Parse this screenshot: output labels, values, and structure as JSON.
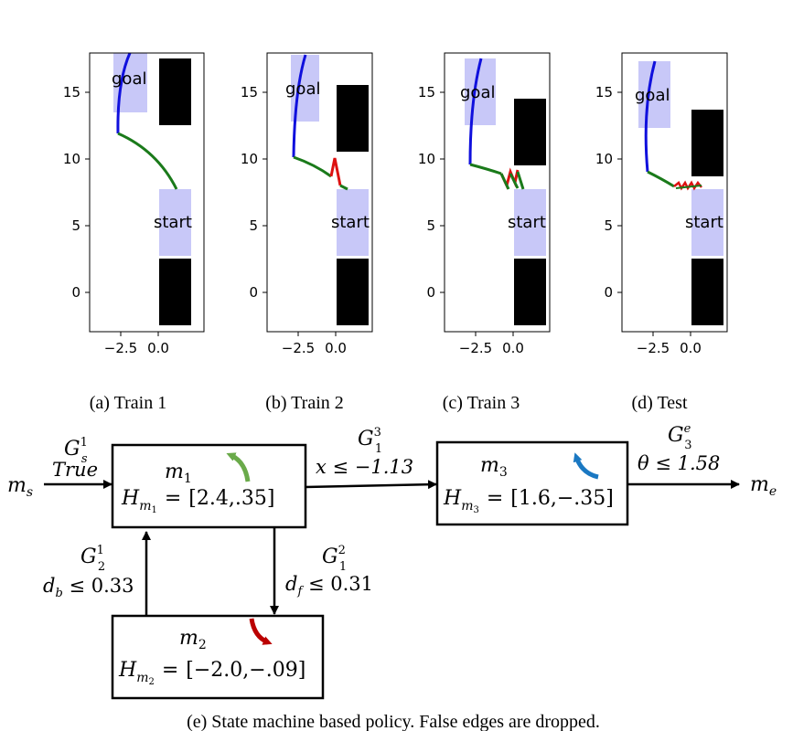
{
  "panels": [
    {
      "caption": "(a) Train 1",
      "goal_label": "goal",
      "start_label": "start"
    },
    {
      "caption": "(b) Train 2",
      "goal_label": "goal",
      "start_label": "start"
    },
    {
      "caption": "(c) Train 3",
      "goal_label": "goal",
      "start_label": "start"
    },
    {
      "caption": "(d) Test",
      "goal_label": "goal",
      "start_label": "start"
    }
  ],
  "axes": {
    "yticks": [
      "15",
      "10",
      "5",
      "0"
    ],
    "xticks": [
      "−2.5",
      "0.0"
    ]
  },
  "colors": {
    "blue_path": "#1010dd",
    "green_path": "#1a7a1a",
    "red_path": "#dd1111",
    "region_fill": "#c8c8f8",
    "obstacle": "#000000",
    "arrow_green": "#6aaa4a",
    "arrow_red": "#bb0000",
    "arrow_blue": "#1a78c2"
  },
  "state_machine": {
    "m_s": "m",
    "m_s_sub": "s",
    "m_e": "m",
    "m_e_sub": "e",
    "m1": {
      "name": "m",
      "sub": "1",
      "h_label": "H",
      "h_sub": "m",
      "h_subsub": "1",
      "eq": "=",
      "interval": "[2.4,.35]"
    },
    "m2": {
      "name": "m",
      "sub": "2",
      "h_label": "H",
      "h_sub": "m",
      "h_subsub": "2",
      "eq": "=",
      "interval": "[−2.0,−.09]"
    },
    "m3": {
      "name": "m",
      "sub": "3",
      "h_label": "H",
      "h_sub": "m",
      "h_subsub": "3",
      "eq": "=",
      "interval": "[1.6,−.35]"
    },
    "edges": {
      "gs1": {
        "g": "G",
        "sup": "1",
        "sub": "s",
        "cond": "True"
      },
      "g13": {
        "g": "G",
        "sup": "3",
        "sub": "1",
        "cond": "x ≤ −1.13"
      },
      "g3e": {
        "g": "G",
        "sup": "e",
        "sub": "3",
        "cond": "θ ≤ 1.58"
      },
      "g21": {
        "g": "G",
        "sup": "1",
        "sub": "2",
        "cond_var": "d",
        "cond_sub": "b",
        "cond_rest": " ≤ 0.33"
      },
      "g12": {
        "g": "G",
        "sup": "2",
        "sub": "1",
        "cond_var": "d",
        "cond_sub": "f",
        "cond_rest": " ≤ 0.31"
      }
    },
    "caption": "(e) State machine based policy. False edges are dropped."
  }
}
